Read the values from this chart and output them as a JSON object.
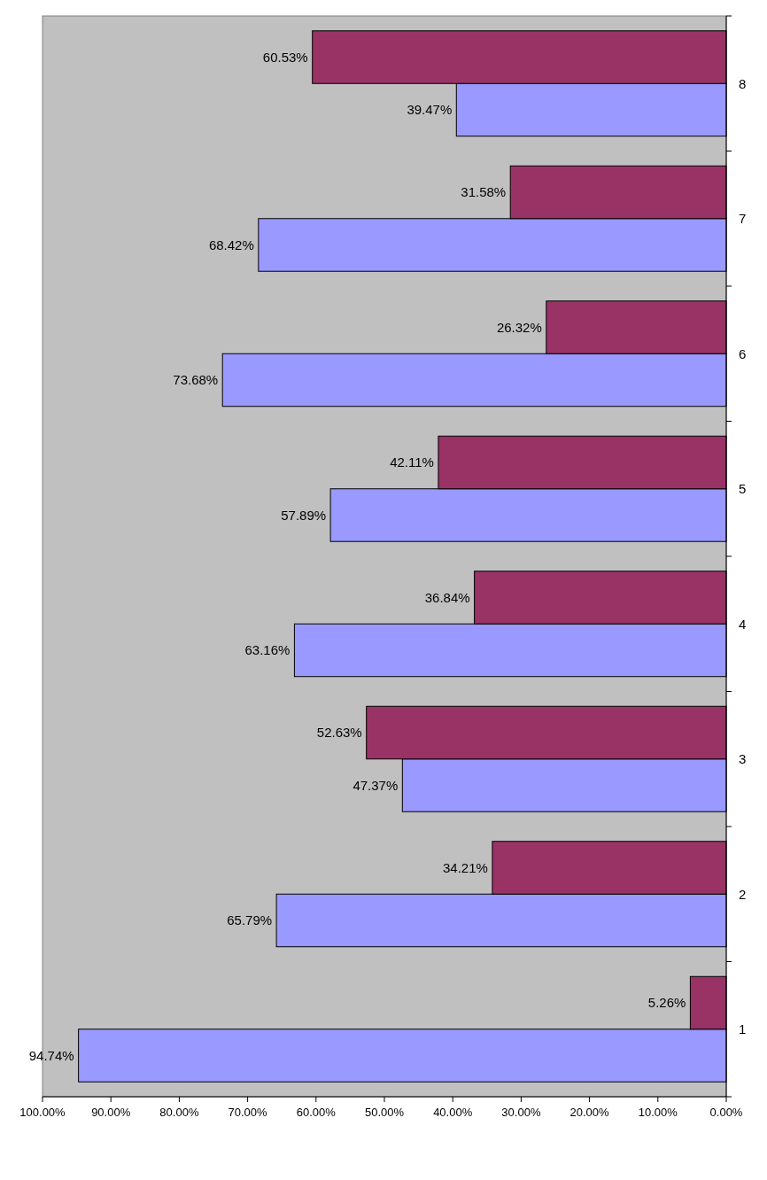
{
  "chart_data": {
    "type": "bar",
    "orientation": "horizontal",
    "categories": [
      "8",
      "7",
      "6",
      "5",
      "4",
      "3",
      "2",
      "1"
    ],
    "series": [
      {
        "color": "#9999ff",
        "values": [
          39.47,
          68.42,
          73.68,
          57.89,
          63.16,
          47.37,
          65.79,
          94.74
        ],
        "value_labels": [
          "39.47%",
          "68.42%",
          "73.68%",
          "57.89%",
          "63.16%",
          "47.37%",
          "65.79%",
          "94.74%"
        ]
      },
      {
        "color": "#993366",
        "values": [
          60.53,
          31.58,
          26.32,
          42.11,
          36.84,
          52.63,
          34.21,
          5.26
        ],
        "value_labels": [
          "60.53%",
          "31.58%",
          "26.32%",
          "42.11%",
          "36.84%",
          "52.63%",
          "34.21%",
          "5.26%"
        ]
      }
    ],
    "xlim": [
      100,
      0
    ],
    "xticks": [
      {
        "value": 100,
        "label": "100.00%"
      },
      {
        "value": 90,
        "label": "90.00%"
      },
      {
        "value": 80,
        "label": "80.00%"
      },
      {
        "value": 70,
        "label": "70.00%"
      },
      {
        "value": 60,
        "label": "60.00%"
      },
      {
        "value": 50,
        "label": "50.00%"
      },
      {
        "value": 40,
        "label": "40.00%"
      },
      {
        "value": 30,
        "label": "30.00%"
      },
      {
        "value": 20,
        "label": "20.00%"
      },
      {
        "value": 10,
        "label": "10.00%"
      },
      {
        "value": 0,
        "label": "0.00%"
      }
    ],
    "grid": false
  }
}
